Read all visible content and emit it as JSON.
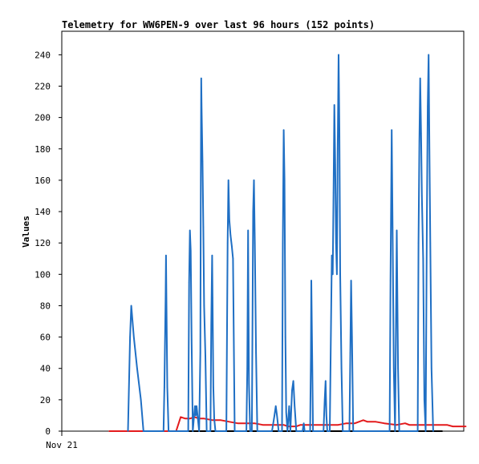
{
  "chart_data": {
    "type": "line",
    "title": "Telemetry for WW6PEN-9 over last 96 hours (152 points)",
    "xlabel": "",
    "ylabel": "Values",
    "ylim": [
      0,
      255
    ],
    "xlim": [
      0,
      96
    ],
    "x_tick_labels": [
      {
        "x": 0,
        "label": "Nov 21"
      }
    ],
    "y_ticks": [
      0,
      20,
      40,
      60,
      80,
      100,
      120,
      140,
      160,
      180,
      200,
      220,
      240
    ],
    "grid": false,
    "legend": "none",
    "series": [
      {
        "color": "#000000",
        "points": [
          [
            11.3,
            0
          ],
          [
            90.9,
            0
          ]
        ]
      },
      {
        "color": "#e31a1c",
        "points": [
          [
            11.3,
            0
          ],
          [
            27.3,
            0
          ],
          [
            28.4,
            9
          ],
          [
            29.5,
            8
          ],
          [
            30.6,
            8
          ],
          [
            31.7,
            9
          ],
          [
            32.8,
            8
          ],
          [
            34.0,
            8
          ],
          [
            36.0,
            7
          ],
          [
            38.0,
            7
          ],
          [
            40.0,
            6
          ],
          [
            42.0,
            5
          ],
          [
            46.0,
            5
          ],
          [
            48.0,
            4
          ],
          [
            50.0,
            4
          ],
          [
            53.0,
            4
          ],
          [
            54.0,
            3
          ],
          [
            56.0,
            3
          ],
          [
            57.0,
            4
          ],
          [
            60.0,
            4
          ],
          [
            63.0,
            4
          ],
          [
            66.0,
            4
          ],
          [
            68.0,
            5
          ],
          [
            70.0,
            5
          ],
          [
            72.0,
            7
          ],
          [
            73.0,
            6
          ],
          [
            75.0,
            6
          ],
          [
            77.0,
            5
          ],
          [
            80.0,
            4
          ],
          [
            82.0,
            5
          ],
          [
            83.0,
            4
          ],
          [
            86.0,
            4
          ],
          [
            90.0,
            4
          ],
          [
            92.0,
            4
          ],
          [
            93.4,
            3
          ],
          [
            96.5,
            3
          ]
        ]
      },
      {
        "color": "#1f6fc4",
        "points": [
          [
            15.8,
            0
          ],
          [
            16.3,
            60
          ],
          [
            16.6,
            80
          ],
          [
            17.2,
            60
          ],
          [
            18.0,
            40
          ],
          [
            18.9,
            20
          ],
          [
            19.5,
            0
          ],
          [
            24.3,
            0
          ],
          [
            24.5,
            28
          ],
          [
            24.8,
            85
          ],
          [
            24.9,
            112
          ],
          [
            25.2,
            28
          ],
          [
            25.5,
            0
          ],
          [
            30.2,
            0
          ],
          [
            30.4,
            95
          ],
          [
            30.6,
            128
          ],
          [
            30.8,
            115
          ],
          [
            31.0,
            58
          ],
          [
            31.3,
            0
          ],
          [
            31.6,
            10
          ],
          [
            31.8,
            16
          ],
          [
            32.0,
            10
          ],
          [
            32.2,
            16
          ],
          [
            32.5,
            8
          ],
          [
            32.8,
            0
          ],
          [
            33.1,
            50
          ],
          [
            33.2,
            160
          ],
          [
            33.3,
            225
          ],
          [
            33.4,
            205
          ],
          [
            33.6,
            172
          ],
          [
            33.8,
            130
          ],
          [
            34.0,
            80
          ],
          [
            34.3,
            48
          ],
          [
            34.6,
            0
          ],
          [
            35.5,
            0
          ],
          [
            35.7,
            68
          ],
          [
            35.9,
            112
          ],
          [
            36.0,
            85
          ],
          [
            36.2,
            28
          ],
          [
            36.4,
            8
          ],
          [
            36.7,
            0
          ],
          [
            39.3,
            0
          ],
          [
            39.6,
            120
          ],
          [
            39.8,
            160
          ],
          [
            40.0,
            135
          ],
          [
            40.3,
            125
          ],
          [
            40.6,
            118
          ],
          [
            40.9,
            110
          ],
          [
            41.3,
            0
          ],
          [
            44.1,
            0
          ],
          [
            44.3,
            40
          ],
          [
            44.5,
            128
          ],
          [
            44.7,
            30
          ],
          [
            45.0,
            0
          ],
          [
            45.4,
            0
          ],
          [
            45.7,
            140
          ],
          [
            45.9,
            160
          ],
          [
            46.1,
            120
          ],
          [
            46.4,
            50
          ],
          [
            46.7,
            0
          ],
          [
            50.2,
            0
          ],
          [
            50.8,
            10
          ],
          [
            51.1,
            16
          ],
          [
            51.4,
            10
          ],
          [
            51.8,
            0
          ],
          [
            52.6,
            0
          ],
          [
            52.8,
            120
          ],
          [
            53.0,
            192
          ],
          [
            53.2,
            160
          ],
          [
            53.4,
            60
          ],
          [
            53.6,
            12
          ],
          [
            53.9,
            0
          ],
          [
            54.3,
            16
          ],
          [
            54.6,
            0
          ],
          [
            55.0,
            26
          ],
          [
            55.3,
            32
          ],
          [
            55.6,
            16
          ],
          [
            56.0,
            0
          ],
          [
            57.5,
            0
          ],
          [
            57.8,
            5
          ],
          [
            58.0,
            0
          ],
          [
            59.3,
            0
          ],
          [
            59.5,
            48
          ],
          [
            59.6,
            96
          ],
          [
            59.8,
            48
          ],
          [
            60.0,
            0
          ],
          [
            62.5,
            0
          ],
          [
            62.8,
            20
          ],
          [
            63.0,
            32
          ],
          [
            63.2,
            10
          ],
          [
            63.4,
            0
          ],
          [
            64.0,
            0
          ],
          [
            64.3,
            70
          ],
          [
            64.5,
            112
          ],
          [
            64.7,
            100
          ],
          [
            64.9,
            152
          ],
          [
            65.1,
            208
          ],
          [
            65.3,
            170
          ],
          [
            65.5,
            120
          ],
          [
            65.7,
            100
          ],
          [
            65.9,
            180
          ],
          [
            66.1,
            240
          ],
          [
            66.3,
            192
          ],
          [
            66.5,
            100
          ],
          [
            66.8,
            40
          ],
          [
            67.1,
            0
          ],
          [
            68.7,
            0
          ],
          [
            68.9,
            50
          ],
          [
            69.1,
            96
          ],
          [
            69.3,
            60
          ],
          [
            69.6,
            0
          ],
          [
            78.3,
            0
          ],
          [
            78.5,
            96
          ],
          [
            78.7,
            160
          ],
          [
            78.8,
            192
          ],
          [
            79.0,
            130
          ],
          [
            79.3,
            40
          ],
          [
            79.6,
            0
          ],
          [
            80.0,
            128
          ],
          [
            80.3,
            40
          ],
          [
            80.6,
            0
          ],
          [
            85.0,
            0
          ],
          [
            85.2,
            120
          ],
          [
            85.4,
            185
          ],
          [
            85.6,
            225
          ],
          [
            85.8,
            190
          ],
          [
            86.0,
            150
          ],
          [
            86.3,
            110
          ],
          [
            86.6,
            20
          ],
          [
            86.9,
            0
          ],
          [
            87.2,
            140
          ],
          [
            87.4,
            207
          ],
          [
            87.6,
            240
          ],
          [
            87.8,
            180
          ],
          [
            88.0,
            120
          ],
          [
            88.3,
            40
          ],
          [
            88.7,
            0
          ]
        ]
      }
    ]
  }
}
